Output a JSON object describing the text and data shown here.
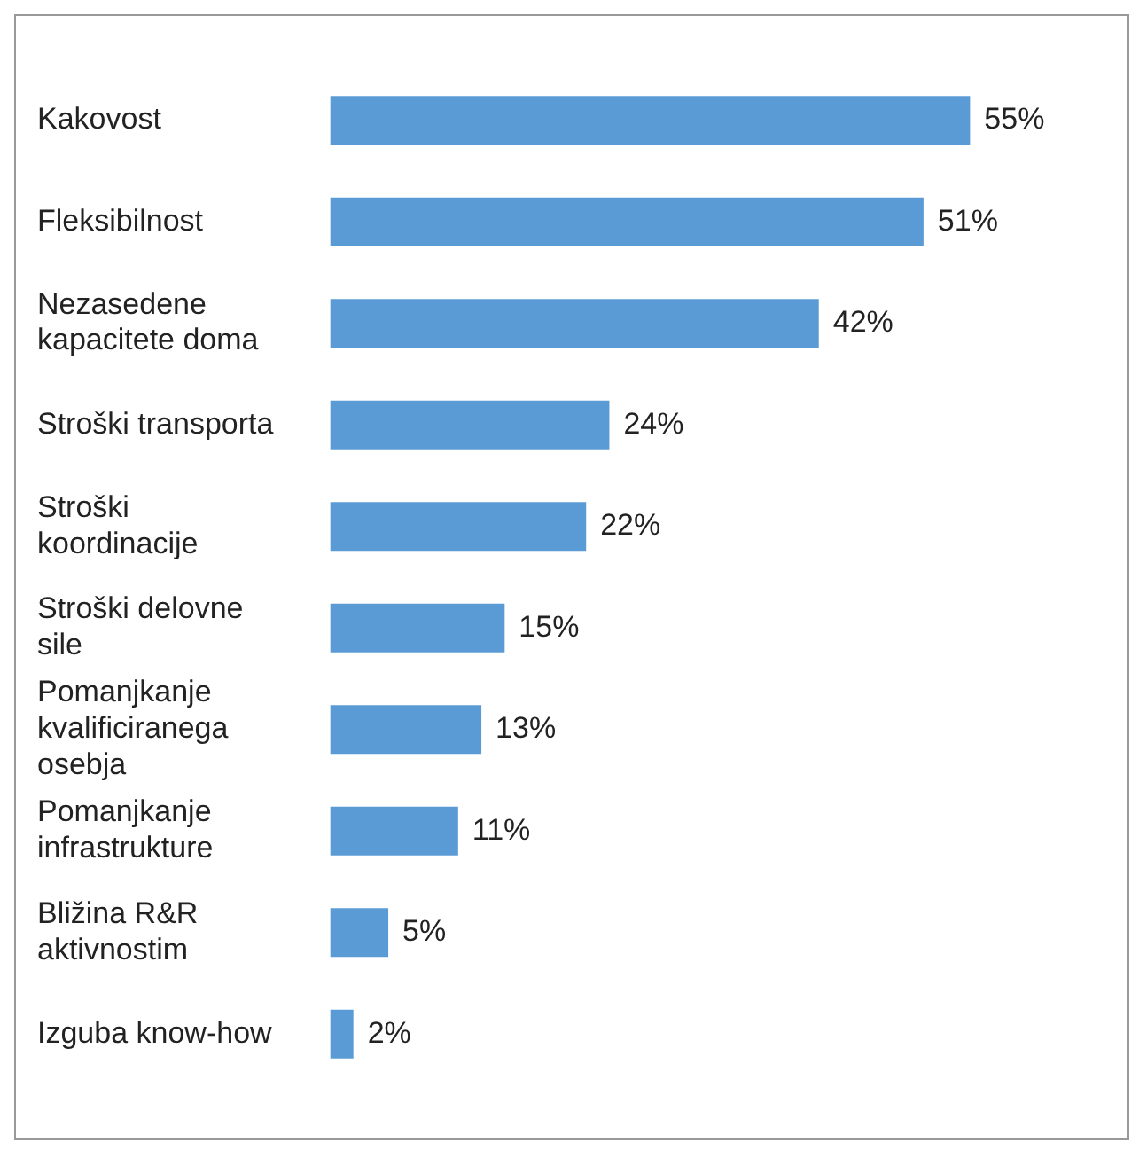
{
  "chart_data": {
    "type": "bar",
    "orientation": "horizontal",
    "categories": [
      "Kakovost",
      "Fleksibilnost",
      "Nezasedene kapacitete doma",
      "Stroški transporta",
      "Stroški koordinacije",
      "Stroški delovne sile",
      "Pomanjkanje kvalificiranega osebja",
      "Pomanjkanje infrastrukture",
      "Bližina R&R aktivnostim",
      "Izguba know-how"
    ],
    "values": [
      55,
      51,
      42,
      24,
      22,
      15,
      13,
      11,
      5,
      2
    ],
    "value_labels": [
      "55%",
      "51%",
      "42%",
      "24%",
      "22%",
      "15%",
      "13%",
      "11%",
      "5%",
      "2%"
    ],
    "color": "#5b9bd5",
    "tick_labels": "y"
  }
}
